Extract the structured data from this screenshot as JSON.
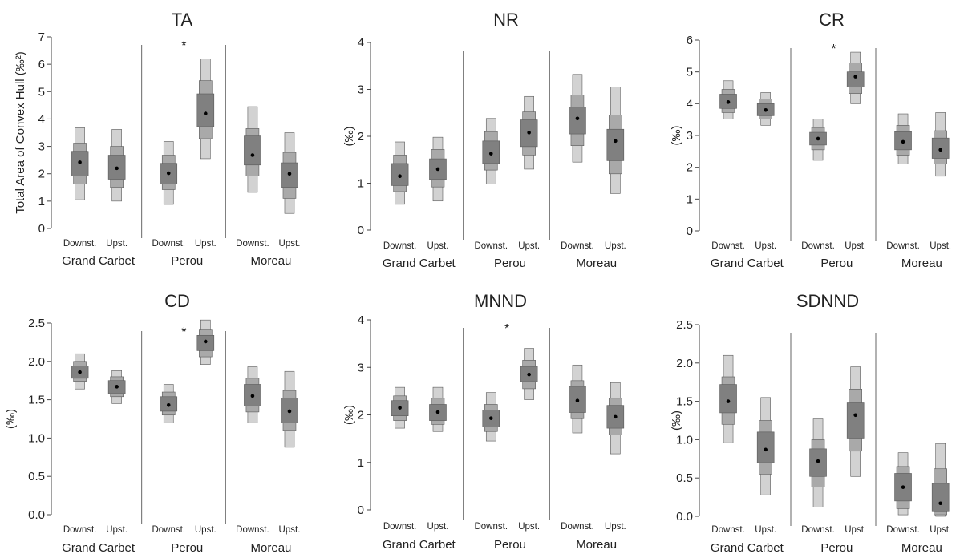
{
  "chart_data": [
    {
      "type": "box",
      "title": "TA",
      "ylabel": "Total Area of Convex Hull (‰²)",
      "ylim": [
        0,
        7
      ],
      "yticks": [
        "0",
        "1",
        "2",
        "3",
        "4",
        "5",
        "6",
        "7"
      ],
      "xlabels": [
        "Downst.",
        "Upst.",
        "Downst.",
        "Upst.",
        "Downst.",
        "Upst."
      ],
      "groups": [
        "Grand Carbet",
        "Perou",
        "Moreau"
      ],
      "significance": [
        {
          "group": "Perou",
          "label": "*"
        }
      ],
      "values": [
        {
          "mean": 2.42,
          "ci50": [
            1.92,
            2.82
          ],
          "ci75": [
            1.62,
            3.12
          ],
          "ci95": [
            1.05,
            3.68
          ]
        },
        {
          "mean": 2.2,
          "ci50": [
            1.8,
            2.68
          ],
          "ci75": [
            1.5,
            3.0
          ],
          "ci95": [
            1.0,
            3.62
          ]
        },
        {
          "mean": 2.02,
          "ci50": [
            1.62,
            2.38
          ],
          "ci75": [
            1.42,
            2.68
          ],
          "ci95": [
            0.88,
            3.18
          ]
        },
        {
          "mean": 4.2,
          "ci50": [
            3.72,
            4.92
          ],
          "ci75": [
            3.28,
            5.4
          ],
          "ci95": [
            2.55,
            6.2
          ]
        },
        {
          "mean": 2.68,
          "ci50": [
            2.32,
            3.38
          ],
          "ci75": [
            1.92,
            3.65
          ],
          "ci95": [
            1.32,
            4.45
          ]
        },
        {
          "mean": 2.0,
          "ci50": [
            1.5,
            2.4
          ],
          "ci75": [
            1.1,
            2.78
          ],
          "ci95": [
            0.55,
            3.5
          ]
        }
      ]
    },
    {
      "type": "box",
      "title": "NR",
      "ylabel": "(‰)",
      "ylim": [
        0,
        4
      ],
      "yticks": [
        "0",
        "1",
        "2",
        "3",
        "4"
      ],
      "xlabels": [
        "Downst.",
        "Upst.",
        "Downst.",
        "Upst.",
        "Downst.",
        "Upst."
      ],
      "groups": [
        "Grand Carbet",
        "Perou",
        "Moreau"
      ],
      "significance": [],
      "values": [
        {
          "mean": 1.15,
          "ci50": [
            0.95,
            1.42
          ],
          "ci75": [
            0.82,
            1.6
          ],
          "ci95": [
            0.55,
            1.88
          ]
        },
        {
          "mean": 1.3,
          "ci50": [
            1.08,
            1.52
          ],
          "ci75": [
            0.92,
            1.72
          ],
          "ci95": [
            0.62,
            1.98
          ]
        },
        {
          "mean": 1.63,
          "ci50": [
            1.42,
            1.9
          ],
          "ci75": [
            1.28,
            2.1
          ],
          "ci95": [
            0.98,
            2.38
          ]
        },
        {
          "mean": 2.08,
          "ci50": [
            1.78,
            2.35
          ],
          "ci75": [
            1.6,
            2.52
          ],
          "ci95": [
            1.3,
            2.85
          ]
        },
        {
          "mean": 2.38,
          "ci50": [
            2.05,
            2.62
          ],
          "ci75": [
            1.8,
            2.88
          ],
          "ci95": [
            1.45,
            3.32
          ]
        },
        {
          "mean": 1.9,
          "ci50": [
            1.48,
            2.15
          ],
          "ci75": [
            1.2,
            2.45
          ],
          "ci95": [
            0.78,
            3.05
          ]
        }
      ]
    },
    {
      "type": "box",
      "title": "CR",
      "ylabel": "(‰)",
      "ylim": [
        0,
        6
      ],
      "yticks": [
        "0",
        "1",
        "2",
        "3",
        "4",
        "5",
        "6"
      ],
      "xlabels": [
        "Downst.",
        "Upst.",
        "Downst.",
        "Upst.",
        "Downst.",
        "Upst."
      ],
      "groups": [
        "Grand Carbet",
        "Perou",
        "Moreau"
      ],
      "significance": [
        {
          "group": "Perou",
          "label": "*"
        }
      ],
      "values": [
        {
          "mean": 4.05,
          "ci50": [
            3.85,
            4.3
          ],
          "ci75": [
            3.72,
            4.45
          ],
          "ci95": [
            3.52,
            4.72
          ]
        },
        {
          "mean": 3.8,
          "ci50": [
            3.62,
            4.0
          ],
          "ci75": [
            3.52,
            4.15
          ],
          "ci95": [
            3.32,
            4.35
          ]
        },
        {
          "mean": 2.9,
          "ci50": [
            2.7,
            3.1
          ],
          "ci75": [
            2.55,
            3.25
          ],
          "ci95": [
            2.22,
            3.52
          ]
        },
        {
          "mean": 4.85,
          "ci50": [
            4.52,
            5.0
          ],
          "ci75": [
            4.32,
            5.28
          ],
          "ci95": [
            4.0,
            5.62
          ]
        },
        {
          "mean": 2.8,
          "ci50": [
            2.55,
            3.12
          ],
          "ci75": [
            2.38,
            3.32
          ],
          "ci95": [
            2.1,
            3.68
          ]
        },
        {
          "mean": 2.55,
          "ci50": [
            2.28,
            2.92
          ],
          "ci75": [
            2.1,
            3.15
          ],
          "ci95": [
            1.72,
            3.72
          ]
        }
      ]
    },
    {
      "type": "box",
      "title": "CD",
      "ylabel": "(‰)",
      "ylim": [
        0,
        2.5
      ],
      "yticks": [
        "0.0",
        "0.5",
        "1.0",
        "1.5",
        "2.0",
        "2.5"
      ],
      "xlabels": [
        "Downst.",
        "Upst.",
        "Downst.",
        "Upst.",
        "Downst.",
        "Upst."
      ],
      "groups": [
        "Grand Carbet",
        "Perou",
        "Moreau"
      ],
      "significance": [
        {
          "group": "Perou",
          "label": "*"
        }
      ],
      "values": [
        {
          "mean": 1.86,
          "ci50": [
            1.78,
            1.94
          ],
          "ci75": [
            1.74,
            2.0
          ],
          "ci95": [
            1.64,
            2.1
          ]
        },
        {
          "mean": 1.67,
          "ci50": [
            1.58,
            1.75
          ],
          "ci75": [
            1.54,
            1.8
          ],
          "ci95": [
            1.45,
            1.88
          ]
        },
        {
          "mean": 1.43,
          "ci50": [
            1.35,
            1.54
          ],
          "ci75": [
            1.3,
            1.6
          ],
          "ci95": [
            1.2,
            1.7
          ]
        },
        {
          "mean": 2.26,
          "ci50": [
            2.14,
            2.34
          ],
          "ci75": [
            2.06,
            2.42
          ],
          "ci95": [
            1.96,
            2.54
          ]
        },
        {
          "mean": 1.55,
          "ci50": [
            1.42,
            1.7
          ],
          "ci75": [
            1.34,
            1.78
          ],
          "ci95": [
            1.2,
            1.93
          ]
        },
        {
          "mean": 1.35,
          "ci50": [
            1.2,
            1.52
          ],
          "ci75": [
            1.1,
            1.62
          ],
          "ci95": [
            0.88,
            1.87
          ]
        }
      ]
    },
    {
      "type": "box",
      "title": "MNND",
      "ylabel": "(‰)",
      "ylim": [
        0,
        4
      ],
      "yticks": [
        "0",
        "1",
        "2",
        "3",
        "4"
      ],
      "xlabels": [
        "Downst.",
        "Upst.",
        "Downst.",
        "Upst.",
        "Downst.",
        "Upst."
      ],
      "groups": [
        "Grand Carbet",
        "Perou",
        "Moreau"
      ],
      "significance": [
        {
          "group": "Perou",
          "label": "*"
        }
      ],
      "values": [
        {
          "mean": 2.15,
          "ci50": [
            1.98,
            2.3
          ],
          "ci75": [
            1.88,
            2.4
          ],
          "ci95": [
            1.72,
            2.58
          ]
        },
        {
          "mean": 2.06,
          "ci50": [
            1.88,
            2.22
          ],
          "ci75": [
            1.8,
            2.35
          ],
          "ci95": [
            1.65,
            2.58
          ]
        },
        {
          "mean": 1.93,
          "ci50": [
            1.75,
            2.1
          ],
          "ci75": [
            1.65,
            2.22
          ],
          "ci95": [
            1.45,
            2.47
          ]
        },
        {
          "mean": 2.85,
          "ci50": [
            2.7,
            3.02
          ],
          "ci75": [
            2.55,
            3.15
          ],
          "ci95": [
            2.32,
            3.4
          ]
        },
        {
          "mean": 2.3,
          "ci50": [
            2.05,
            2.6
          ],
          "ci75": [
            1.92,
            2.72
          ],
          "ci95": [
            1.62,
            3.05
          ]
        },
        {
          "mean": 1.96,
          "ci50": [
            1.72,
            2.2
          ],
          "ci75": [
            1.58,
            2.35
          ],
          "ci95": [
            1.18,
            2.68
          ]
        }
      ]
    },
    {
      "type": "box",
      "title": "SDNND",
      "ylabel": "(‰)",
      "ylim": [
        0,
        2.5
      ],
      "yticks": [
        "0.0",
        "0.5",
        "1.0",
        "1.5",
        "2.0",
        "2.5"
      ],
      "xlabels": [
        "Downst.",
        "Upst.",
        "Downst.",
        "Upst.",
        "Downst.",
        "Upst."
      ],
      "groups": [
        "Grand Carbet",
        "Perou",
        "Moreau"
      ],
      "significance": [],
      "values": [
        {
          "mean": 1.5,
          "ci50": [
            1.35,
            1.72
          ],
          "ci75": [
            1.2,
            1.82
          ],
          "ci95": [
            0.96,
            2.1
          ]
        },
        {
          "mean": 0.87,
          "ci50": [
            0.7,
            1.1
          ],
          "ci75": [
            0.55,
            1.25
          ],
          "ci95": [
            0.28,
            1.55
          ]
        },
        {
          "mean": 0.72,
          "ci50": [
            0.52,
            0.88
          ],
          "ci75": [
            0.38,
            1.0
          ],
          "ci95": [
            0.12,
            1.27
          ]
        },
        {
          "mean": 1.32,
          "ci50": [
            1.02,
            1.48
          ],
          "ci75": [
            0.85,
            1.66
          ],
          "ci95": [
            0.52,
            1.95
          ]
        },
        {
          "mean": 0.38,
          "ci50": [
            0.2,
            0.56
          ],
          "ci75": [
            0.1,
            0.65
          ],
          "ci95": [
            0.02,
            0.83
          ]
        },
        {
          "mean": 0.17,
          "ci50": [
            0.06,
            0.43
          ],
          "ci75": [
            0.02,
            0.62
          ],
          "ci95": [
            0.0,
            0.95
          ]
        }
      ]
    }
  ]
}
